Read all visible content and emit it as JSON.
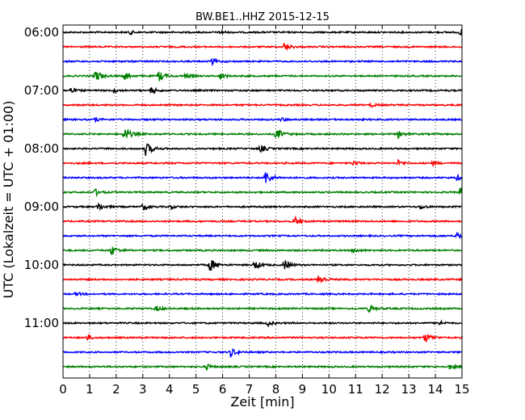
{
  "chart_data": {
    "type": "line",
    "title": "BW.BE1..HHZ 2015-12-15",
    "xlabel": "Zeit  [min]",
    "ylabel": "UTC (Lokalzeit = UTC + 01:00)",
    "xlim": [
      0,
      15
    ],
    "x_ticks": [
      "0",
      "1",
      "2",
      "3",
      "4",
      "5",
      "6",
      "7",
      "8",
      "9",
      "10",
      "11",
      "12",
      "13",
      "14",
      "15"
    ],
    "y_tick_labels": [
      "06:00",
      "07:00",
      "08:00",
      "09:00",
      "10:00",
      "11:00"
    ],
    "series_colors": [
      "#000000",
      "#ff0000",
      "#0000ff",
      "#008000"
    ],
    "grid": "vertical dotted",
    "rows": [
      {
        "start": "06:00",
        "color": "#000000",
        "events": [
          {
            "t": 2.5,
            "a": 0.3
          },
          {
            "t": 5.9,
            "a": 0.3
          },
          {
            "t": 14.9,
            "a": 0.5
          }
        ]
      },
      {
        "start": "06:15",
        "color": "#ff0000",
        "events": [
          {
            "t": 8.3,
            "a": 0.7
          }
        ]
      },
      {
        "start": "06:30",
        "color": "#0000ff",
        "events": [
          {
            "t": 5.6,
            "a": 0.5
          }
        ]
      },
      {
        "start": "06:45",
        "color": "#008000",
        "events": [
          {
            "t": 1.2,
            "a": 0.9
          },
          {
            "t": 2.3,
            "a": 0.6
          },
          {
            "t": 3.6,
            "a": 0.8
          },
          {
            "t": 4.6,
            "a": 0.4
          },
          {
            "t": 5.9,
            "a": 0.5
          }
        ]
      },
      {
        "start": "07:00",
        "color": "#000000",
        "events": [
          {
            "t": 0.3,
            "a": 0.4
          },
          {
            "t": 1.9,
            "a": 0.3
          },
          {
            "t": 3.3,
            "a": 0.5
          }
        ]
      },
      {
        "start": "07:15",
        "color": "#ff0000",
        "events": [
          {
            "t": 11.6,
            "a": 0.3
          }
        ]
      },
      {
        "start": "07:30",
        "color": "#0000ff",
        "events": [
          {
            "t": 1.2,
            "a": 0.3
          },
          {
            "t": 8.2,
            "a": 0.3
          }
        ]
      },
      {
        "start": "07:45",
        "color": "#008000",
        "events": [
          {
            "t": 2.3,
            "a": 1.0
          },
          {
            "t": 8.0,
            "a": 0.9
          },
          {
            "t": 12.6,
            "a": 0.5
          }
        ]
      },
      {
        "start": "08:00",
        "color": "#000000",
        "events": [
          {
            "t": 3.1,
            "a": 1.0
          },
          {
            "t": 7.4,
            "a": 0.6
          }
        ]
      },
      {
        "start": "08:15",
        "color": "#ff0000",
        "events": [
          {
            "t": 10.9,
            "a": 0.4
          },
          {
            "t": 12.6,
            "a": 0.4
          },
          {
            "t": 13.9,
            "a": 0.3
          }
        ]
      },
      {
        "start": "08:30",
        "color": "#0000ff",
        "events": [
          {
            "t": 7.6,
            "a": 1.0
          },
          {
            "t": 14.8,
            "a": 0.4
          }
        ]
      },
      {
        "start": "08:45",
        "color": "#008000",
        "events": [
          {
            "t": 1.2,
            "a": 0.5
          },
          {
            "t": 14.9,
            "a": 0.8
          }
        ]
      },
      {
        "start": "09:00",
        "color": "#000000",
        "events": [
          {
            "t": 1.3,
            "a": 0.6
          },
          {
            "t": 3.0,
            "a": 0.6
          },
          {
            "t": 4.0,
            "a": 0.3
          },
          {
            "t": 13.4,
            "a": 0.4
          }
        ]
      },
      {
        "start": "09:15",
        "color": "#ff0000",
        "events": [
          {
            "t": 8.7,
            "a": 0.7
          }
        ]
      },
      {
        "start": "09:30",
        "color": "#0000ff",
        "events": [
          {
            "t": 14.8,
            "a": 0.5
          }
        ]
      },
      {
        "start": "09:45",
        "color": "#008000",
        "events": [
          {
            "t": 1.8,
            "a": 0.8
          },
          {
            "t": 10.9,
            "a": 0.4
          }
        ]
      },
      {
        "start": "10:00",
        "color": "#000000",
        "events": [
          {
            "t": 5.5,
            "a": 1.0
          },
          {
            "t": 7.2,
            "a": 0.7
          },
          {
            "t": 8.3,
            "a": 0.8
          }
        ]
      },
      {
        "start": "10:15",
        "color": "#ff0000",
        "events": [
          {
            "t": 9.6,
            "a": 0.8
          }
        ]
      },
      {
        "start": "10:30",
        "color": "#0000ff",
        "events": [
          {
            "t": 0.5,
            "a": 0.3
          }
        ]
      },
      {
        "start": "10:45",
        "color": "#008000",
        "events": [
          {
            "t": 3.5,
            "a": 0.4
          },
          {
            "t": 11.5,
            "a": 0.6
          }
        ]
      },
      {
        "start": "11:00",
        "color": "#000000",
        "events": [
          {
            "t": 7.7,
            "a": 0.4
          },
          {
            "t": 14.1,
            "a": 0.4
          }
        ]
      },
      {
        "start": "11:15",
        "color": "#ff0000",
        "events": [
          {
            "t": 0.9,
            "a": 0.4
          },
          {
            "t": 13.6,
            "a": 0.8
          }
        ]
      },
      {
        "start": "11:30",
        "color": "#0000ff",
        "events": [
          {
            "t": 6.3,
            "a": 0.7
          }
        ]
      },
      {
        "start": "11:45",
        "color": "#008000",
        "events": [
          {
            "t": 5.4,
            "a": 0.4
          },
          {
            "t": 14.5,
            "a": 0.4
          }
        ]
      }
    ]
  }
}
